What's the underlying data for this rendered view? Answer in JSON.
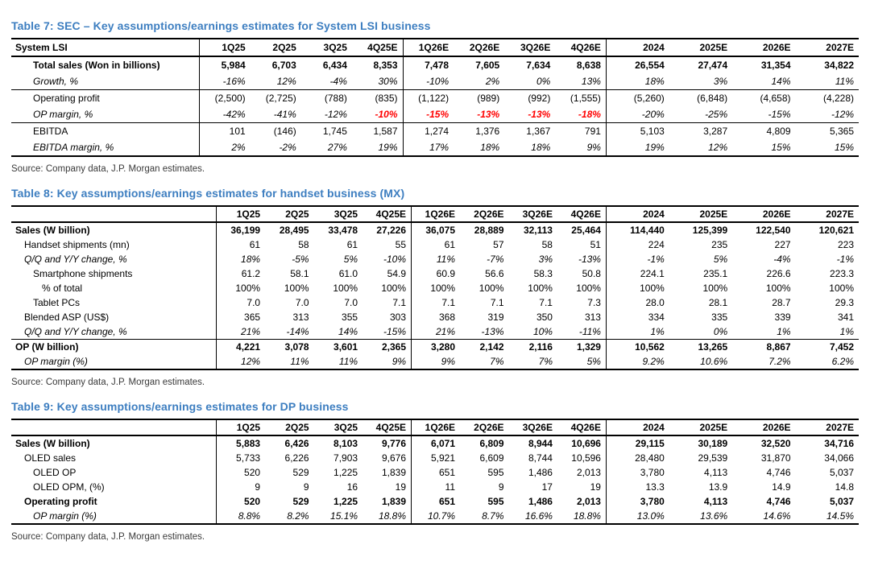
{
  "colors": {
    "title_blue": "#3d7ec0",
    "negative_red": "#ff0000",
    "text_black": "#000000",
    "source_gray": "#3a3a3a"
  },
  "document": {
    "tables": [
      {
        "title": "Table 7: SEC – Key assumptions/earnings estimates for System LSI business",
        "source": "Source: Company data, J.P. Morgan estimates.",
        "header": [
          "System LSI",
          "1Q25",
          "2Q25",
          "3Q25",
          "4Q25E",
          "1Q26E",
          "2Q26E",
          "3Q26E",
          "4Q26E",
          "2024",
          "2025E",
          "2026E",
          "2027E"
        ],
        "rows": [
          {
            "label": "Total sales (Won in billions)",
            "indent": 2,
            "bold": true,
            "values": [
              "5,984",
              "6,703",
              "6,434",
              "8,353",
              "7,478",
              "7,605",
              "7,634",
              "8,638",
              "26,554",
              "27,474",
              "31,354",
              "34,822"
            ]
          },
          {
            "label": "Growth, %",
            "indent": 2,
            "italic": true,
            "rule": true,
            "values": [
              "-16%",
              "12%",
              "-4%",
              "30%",
              "-10%",
              "2%",
              "0%",
              "13%",
              "18%",
              "3%",
              "14%",
              "11%"
            ]
          },
          {
            "label": "Operating profit",
            "indent": 2,
            "values": [
              "(2,500)",
              "(2,725)",
              "(788)",
              "(835)",
              "(1,122)",
              "(989)",
              "(992)",
              "(1,555)",
              "(5,260)",
              "(6,848)",
              "(4,658)",
              "(4,228)"
            ]
          },
          {
            "label": "OP margin, %",
            "indent": 2,
            "italic": true,
            "rule": true,
            "red": [
              3,
              4,
              5,
              6,
              7
            ],
            "values": [
              "-42%",
              "-41%",
              "-12%",
              "-10%",
              "-15%",
              "-13%",
              "-13%",
              "-18%",
              "-20%",
              "-25%",
              "-15%",
              "-12%"
            ]
          },
          {
            "label": "EBITDA",
            "indent": 2,
            "values": [
              "101",
              "(146)",
              "1,745",
              "1,587",
              "1,274",
              "1,376",
              "1,367",
              "791",
              "5,103",
              "3,287",
              "4,809",
              "5,365"
            ]
          },
          {
            "label": "EBITDA margin, %",
            "indent": 2,
            "italic": true,
            "values": [
              "2%",
              "-2%",
              "27%",
              "19%",
              "17%",
              "18%",
              "18%",
              "9%",
              "19%",
              "12%",
              "15%",
              "15%"
            ]
          }
        ]
      },
      {
        "title": "Table 8: Key assumptions/earnings estimates for handset business (MX)",
        "source": "Source: Company data, J.P. Morgan estimates.",
        "header": [
          "",
          "1Q25",
          "2Q25",
          "3Q25",
          "4Q25E",
          "1Q26E",
          "2Q26E",
          "3Q26E",
          "4Q26E",
          "2024",
          "2025E",
          "2026E",
          "2027E"
        ],
        "rows": [
          {
            "label": "Sales (W billion)",
            "indent": 0,
            "bold": true,
            "values": [
              "36,199",
              "28,495",
              "33,478",
              "27,226",
              "36,075",
              "28,889",
              "32,113",
              "25,464",
              "114,440",
              "125,399",
              "122,540",
              "120,621"
            ]
          },
          {
            "label": "Handset shipments (mn)",
            "indent": 1,
            "values": [
              "61",
              "58",
              "61",
              "55",
              "61",
              "57",
              "58",
              "51",
              "224",
              "235",
              "227",
              "223"
            ]
          },
          {
            "label": "Q/Q and Y/Y change, %",
            "indent": 1,
            "italic": true,
            "values": [
              "18%",
              "-5%",
              "5%",
              "-10%",
              "11%",
              "-7%",
              "3%",
              "-13%",
              "-1%",
              "5%",
              "-4%",
              "-1%"
            ]
          },
          {
            "label": "Smartphone shipments",
            "indent": 2,
            "values": [
              "61.2",
              "58.1",
              "61.0",
              "54.9",
              "60.9",
              "56.6",
              "58.3",
              "50.8",
              "224.1",
              "235.1",
              "226.6",
              "223.3"
            ]
          },
          {
            "label": "% of total",
            "indent": 3,
            "values": [
              "100%",
              "100%",
              "100%",
              "100%",
              "100%",
              "100%",
              "100%",
              "100%",
              "100%",
              "100%",
              "100%",
              "100%"
            ]
          },
          {
            "label": "Tablet PCs",
            "indent": 2,
            "values": [
              "7.0",
              "7.0",
              "7.0",
              "7.1",
              "7.1",
              "7.1",
              "7.1",
              "7.3",
              "28.0",
              "28.1",
              "28.7",
              "29.3"
            ]
          },
          {
            "label": "Blended ASP (US$)",
            "indent": 1,
            "values": [
              "365",
              "313",
              "355",
              "303",
              "368",
              "319",
              "350",
              "313",
              "334",
              "335",
              "339",
              "341"
            ]
          },
          {
            "label": "Q/Q and Y/Y change, %",
            "indent": 1,
            "italic": true,
            "rule": true,
            "values": [
              "21%",
              "-14%",
              "14%",
              "-15%",
              "21%",
              "-13%",
              "10%",
              "-11%",
              "1%",
              "0%",
              "1%",
              "1%"
            ]
          },
          {
            "label": "OP (W billion)",
            "indent": 0,
            "bold": true,
            "values": [
              "4,221",
              "3,078",
              "3,601",
              "2,365",
              "3,280",
              "2,142",
              "2,116",
              "1,329",
              "10,562",
              "13,265",
              "8,867",
              "7,452"
            ]
          },
          {
            "label": "OP margin (%)",
            "indent": 1,
            "italic": true,
            "values": [
              "12%",
              "11%",
              "11%",
              "9%",
              "9%",
              "7%",
              "7%",
              "5%",
              "9.2%",
              "10.6%",
              "7.2%",
              "6.2%"
            ]
          }
        ]
      },
      {
        "title": "Table 9: Key assumptions/earnings estimates for DP business",
        "source": "Source: Company data, J.P. Morgan estimates.",
        "header": [
          "",
          "1Q25",
          "2Q25",
          "3Q25",
          "4Q25E",
          "1Q26E",
          "2Q26E",
          "3Q26E",
          "4Q26E",
          "2024",
          "2025E",
          "2026E",
          "2027E"
        ],
        "rows": [
          {
            "label": "Sales (W billion)",
            "indent": 0,
            "bold": true,
            "values": [
              "5,883",
              "6,426",
              "8,103",
              "9,776",
              "6,071",
              "6,809",
              "8,944",
              "10,696",
              "29,115",
              "30,189",
              "32,520",
              "34,716"
            ]
          },
          {
            "label": "OLED sales",
            "indent": 1,
            "values": [
              "5,733",
              "6,226",
              "7,903",
              "9,676",
              "5,921",
              "6,609",
              "8,744",
              "10,596",
              "28,480",
              "29,539",
              "31,870",
              "34,066"
            ]
          },
          {
            "label": "OLED OP",
            "indent": 2,
            "values": [
              "520",
              "529",
              "1,225",
              "1,839",
              "651",
              "595",
              "1,486",
              "2,013",
              "3,780",
              "4,113",
              "4,746",
              "5,037"
            ]
          },
          {
            "label": "OLED OPM, (%)",
            "indent": 2,
            "values": [
              "9",
              "9",
              "16",
              "19",
              "11",
              "9",
              "17",
              "19",
              "13.3",
              "13.9",
              "14.9",
              "14.8"
            ]
          },
          {
            "label": "Operating profit",
            "indent": 1,
            "bold": true,
            "values": [
              "520",
              "529",
              "1,225",
              "1,839",
              "651",
              "595",
              "1,486",
              "2,013",
              "3,780",
              "4,113",
              "4,746",
              "5,037"
            ]
          },
          {
            "label": "OP margin (%)",
            "indent": 2,
            "italic": true,
            "values": [
              "8.8%",
              "8.2%",
              "15.1%",
              "18.8%",
              "10.7%",
              "8.7%",
              "16.6%",
              "18.8%",
              "13.0%",
              "13.6%",
              "14.6%",
              "14.5%"
            ]
          }
        ]
      }
    ]
  }
}
